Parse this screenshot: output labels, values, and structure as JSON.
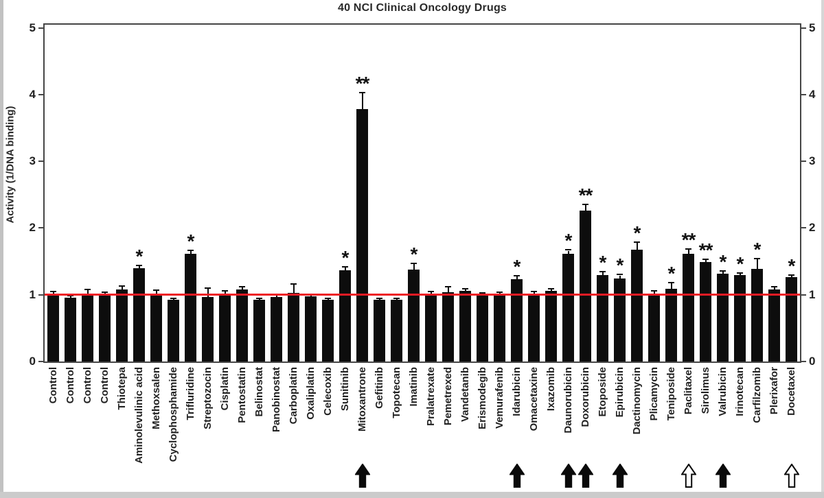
{
  "figure": {
    "title": "40 NCI Clinical Oncology Drugs",
    "y_axis_title": "Activity (1/DNA binding)"
  },
  "chart_data": {
    "type": "bar",
    "title": "40 NCI Clinical Oncology Drugs",
    "ylabel": "Activity (1/DNA binding)",
    "xlabel": "",
    "ylim": [
      0,
      5
    ],
    "yticks": [
      0,
      1,
      2,
      3,
      4,
      5
    ],
    "y_axis_sides": [
      "left",
      "right"
    ],
    "grid": false,
    "legend": "none",
    "bar_color": "#0d0d0d",
    "error_bar_color": "#0d0d0d",
    "reference_line": {
      "value": 1.0,
      "color": "#ee1b24"
    },
    "significance_symbols": {
      "single": "*",
      "double": "**"
    },
    "arrow_styles": [
      "filled",
      "open"
    ],
    "bars": [
      {
        "label": "Control",
        "value": 1.0,
        "error": 0.04,
        "sig": "",
        "arrow": ""
      },
      {
        "label": "Control",
        "value": 0.96,
        "error": 0.02,
        "sig": "",
        "arrow": ""
      },
      {
        "label": "Control",
        "value": 1.02,
        "error": 0.05,
        "sig": "",
        "arrow": ""
      },
      {
        "label": "Control",
        "value": 1.0,
        "error": 0.03,
        "sig": "",
        "arrow": ""
      },
      {
        "label": "Thiotepa",
        "value": 1.08,
        "error": 0.04,
        "sig": "",
        "arrow": ""
      },
      {
        "label": "Aminolevulinic acid",
        "value": 1.4,
        "error": 0.03,
        "sig": "*",
        "arrow": ""
      },
      {
        "label": "Methoxsalen",
        "value": 1.01,
        "error": 0.05,
        "sig": "",
        "arrow": ""
      },
      {
        "label": "Cyclophosphamide",
        "value": 0.92,
        "error": 0.02,
        "sig": "",
        "arrow": ""
      },
      {
        "label": "Trifluridine",
        "value": 1.61,
        "error": 0.04,
        "sig": "*",
        "arrow": ""
      },
      {
        "label": "Streptozocin",
        "value": 0.97,
        "error": 0.12,
        "sig": "",
        "arrow": ""
      },
      {
        "label": "Cisplatin",
        "value": 1.02,
        "error": 0.03,
        "sig": "",
        "arrow": ""
      },
      {
        "label": "Pentostatin",
        "value": 1.08,
        "error": 0.03,
        "sig": "",
        "arrow": ""
      },
      {
        "label": "Belinostat",
        "value": 0.92,
        "error": 0.02,
        "sig": "",
        "arrow": ""
      },
      {
        "label": "Panobinostat",
        "value": 0.97,
        "error": 0.02,
        "sig": "",
        "arrow": ""
      },
      {
        "label": "Carboplatin",
        "value": 1.03,
        "error": 0.12,
        "sig": "",
        "arrow": ""
      },
      {
        "label": "Oxaliplatin",
        "value": 0.98,
        "error": 0.02,
        "sig": "",
        "arrow": ""
      },
      {
        "label": "Celecoxib",
        "value": 0.92,
        "error": 0.02,
        "sig": "",
        "arrow": ""
      },
      {
        "label": "Sunitinib",
        "value": 1.37,
        "error": 0.04,
        "sig": "*",
        "arrow": ""
      },
      {
        "label": "Mitoxantrone",
        "value": 3.78,
        "error": 0.24,
        "sig": "**",
        "arrow": "filled"
      },
      {
        "label": "Gefitinib",
        "value": 0.92,
        "error": 0.02,
        "sig": "",
        "arrow": ""
      },
      {
        "label": "Topotecan",
        "value": 0.92,
        "error": 0.02,
        "sig": "",
        "arrow": ""
      },
      {
        "label": "Imatinib",
        "value": 1.38,
        "error": 0.08,
        "sig": "*",
        "arrow": ""
      },
      {
        "label": "Pralatrexate",
        "value": 1.01,
        "error": 0.03,
        "sig": "",
        "arrow": ""
      },
      {
        "label": "Pemetrexed",
        "value": 1.04,
        "error": 0.07,
        "sig": "",
        "arrow": ""
      },
      {
        "label": "Vandetanib",
        "value": 1.06,
        "error": 0.02,
        "sig": "",
        "arrow": ""
      },
      {
        "label": "Erismodegib",
        "value": 1.0,
        "error": 0.02,
        "sig": "",
        "arrow": ""
      },
      {
        "label": "Vemurafenib",
        "value": 1.01,
        "error": 0.02,
        "sig": "",
        "arrow": ""
      },
      {
        "label": "Idarubicin",
        "value": 1.23,
        "error": 0.04,
        "sig": "*",
        "arrow": "filled"
      },
      {
        "label": "Omacetaxine",
        "value": 1.02,
        "error": 0.02,
        "sig": "",
        "arrow": ""
      },
      {
        "label": "Ixazomib",
        "value": 1.06,
        "error": 0.02,
        "sig": "",
        "arrow": ""
      },
      {
        "label": "Daunorubicin",
        "value": 1.61,
        "error": 0.05,
        "sig": "*",
        "arrow": "filled"
      },
      {
        "label": "Doxorubicin",
        "value": 2.26,
        "error": 0.08,
        "sig": "**",
        "arrow": "filled"
      },
      {
        "label": "Etoposide",
        "value": 1.29,
        "error": 0.05,
        "sig": "*",
        "arrow": ""
      },
      {
        "label": "Epirubicin",
        "value": 1.24,
        "error": 0.05,
        "sig": "*",
        "arrow": "filled"
      },
      {
        "label": "Dactinomycin",
        "value": 1.68,
        "error": 0.1,
        "sig": "*",
        "arrow": ""
      },
      {
        "label": "Plicamycin",
        "value": 1.02,
        "error": 0.03,
        "sig": "",
        "arrow": ""
      },
      {
        "label": "Teniposide",
        "value": 1.09,
        "error": 0.08,
        "sig": "*",
        "arrow": ""
      },
      {
        "label": "Paclitaxel",
        "value": 1.61,
        "error": 0.07,
        "sig": "**",
        "arrow": "open"
      },
      {
        "label": "Sirolimus",
        "value": 1.49,
        "error": 0.03,
        "sig": "**",
        "arrow": ""
      },
      {
        "label": "Valrubicin",
        "value": 1.32,
        "error": 0.03,
        "sig": "*",
        "arrow": "filled"
      },
      {
        "label": "Irinotecan",
        "value": 1.29,
        "error": 0.03,
        "sig": "*",
        "arrow": ""
      },
      {
        "label": "Carfilzomib",
        "value": 1.39,
        "error": 0.14,
        "sig": "*",
        "arrow": ""
      },
      {
        "label": "Plerixafor",
        "value": 1.08,
        "error": 0.03,
        "sig": "",
        "arrow": ""
      },
      {
        "label": "Docetaxel",
        "value": 1.26,
        "error": 0.02,
        "sig": "*",
        "arrow": "open"
      }
    ]
  }
}
